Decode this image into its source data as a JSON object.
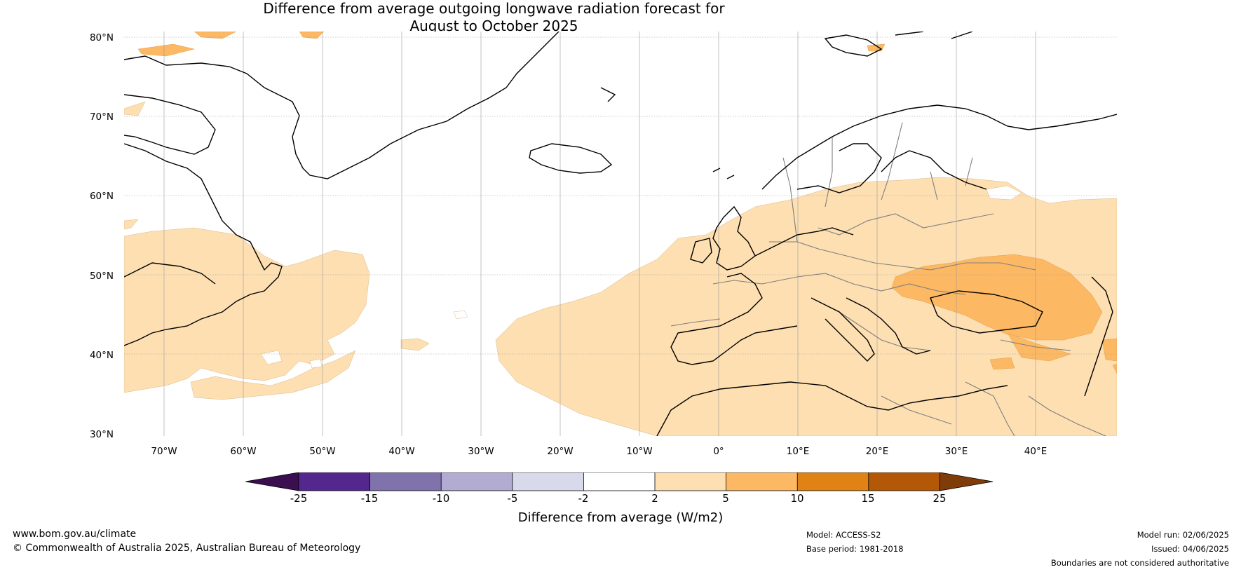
{
  "title": {
    "line1": "Difference from average outgoing longwave radiation forecast for",
    "line2": "August to October 2025"
  },
  "map": {
    "lat_labels": [
      "80°N",
      "70°N",
      "60°N",
      "50°N",
      "40°N",
      "30°N"
    ],
    "lon_labels": [
      "70°W",
      "60°W",
      "50°W",
      "40°W",
      "30°W",
      "20°W",
      "10°W",
      "0°",
      "10°E",
      "20°E",
      "30°E",
      "40°E"
    ],
    "extent": {
      "lon_min": -75,
      "lon_max": 50,
      "lat_min": 30,
      "lat_max": 81
    },
    "colors": {
      "coast": "#000000",
      "border": "#7f7f7f",
      "grid": "#b0b0b0"
    }
  },
  "colorbar": {
    "ticks": [
      "-25",
      "-15",
      "-10",
      "-5",
      "-2",
      "2",
      "5",
      "10",
      "15",
      "25"
    ],
    "colors": [
      "#3b0f4f",
      "#54278f",
      "#8073ac",
      "#b2abd2",
      "#d8daeb",
      "#ffffff",
      "#fddfb2",
      "#fdb863",
      "#e08214",
      "#b35806",
      "#7f3b08"
    ],
    "label": "Difference from average (W/m2)"
  },
  "footer": {
    "website": "www.bom.gov.au/climate",
    "copyright": "© Commonwealth of Australia 2025, Australian Bureau of Meteorology",
    "model": "Model: ACCESS-S2",
    "base_period": "Base period: 1981-2018",
    "model_run": "Model run: 02/06/2025",
    "issued": "Issued: 04/06/2025",
    "disclaimer": "Boundaries are not considered authoritative"
  }
}
